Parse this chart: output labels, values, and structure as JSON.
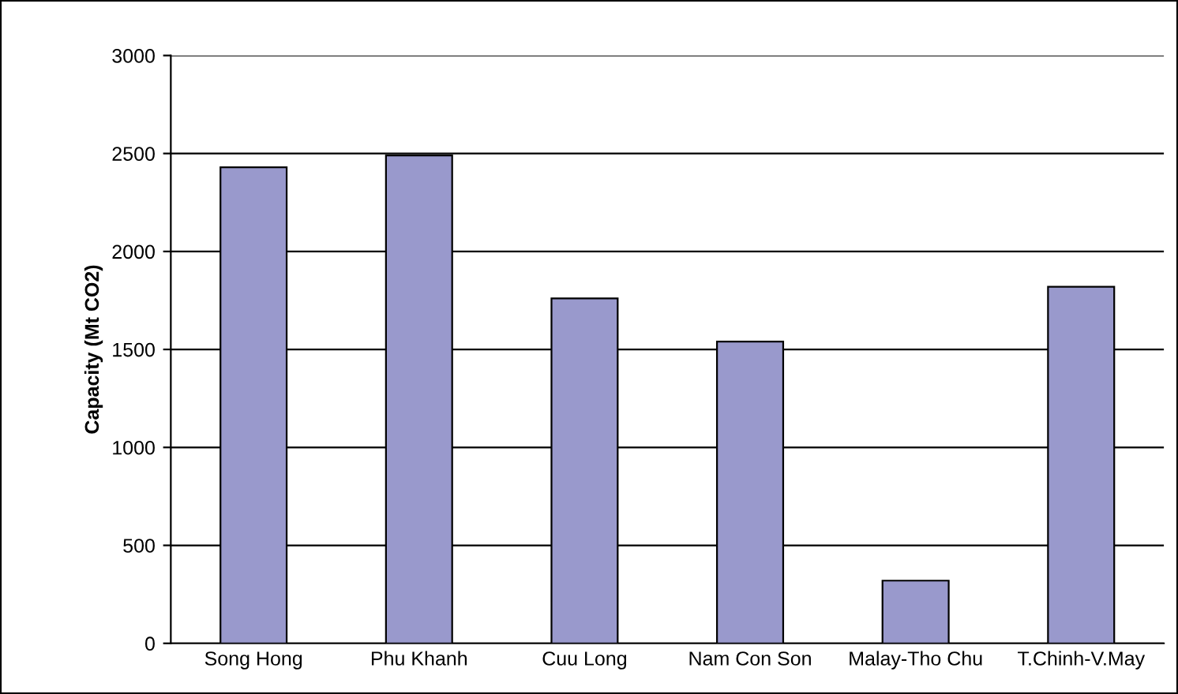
{
  "chart_data": {
    "type": "bar",
    "ylabel": "Capacity (Mt CO2)",
    "categories": [
      "Song Hong",
      "Phu Khanh",
      "Cuu Long",
      "Nam Con Son",
      "Malay-Tho Chu",
      "T.Chinh-V.May"
    ],
    "values": [
      2430,
      2490,
      1760,
      1540,
      320,
      1820
    ],
    "color": "#9999cc",
    "ylim": [
      0,
      3000
    ],
    "yticks": [
      0,
      500,
      1000,
      1500,
      2000,
      2500,
      3000
    ],
    "grid": "y",
    "legend": false
  }
}
